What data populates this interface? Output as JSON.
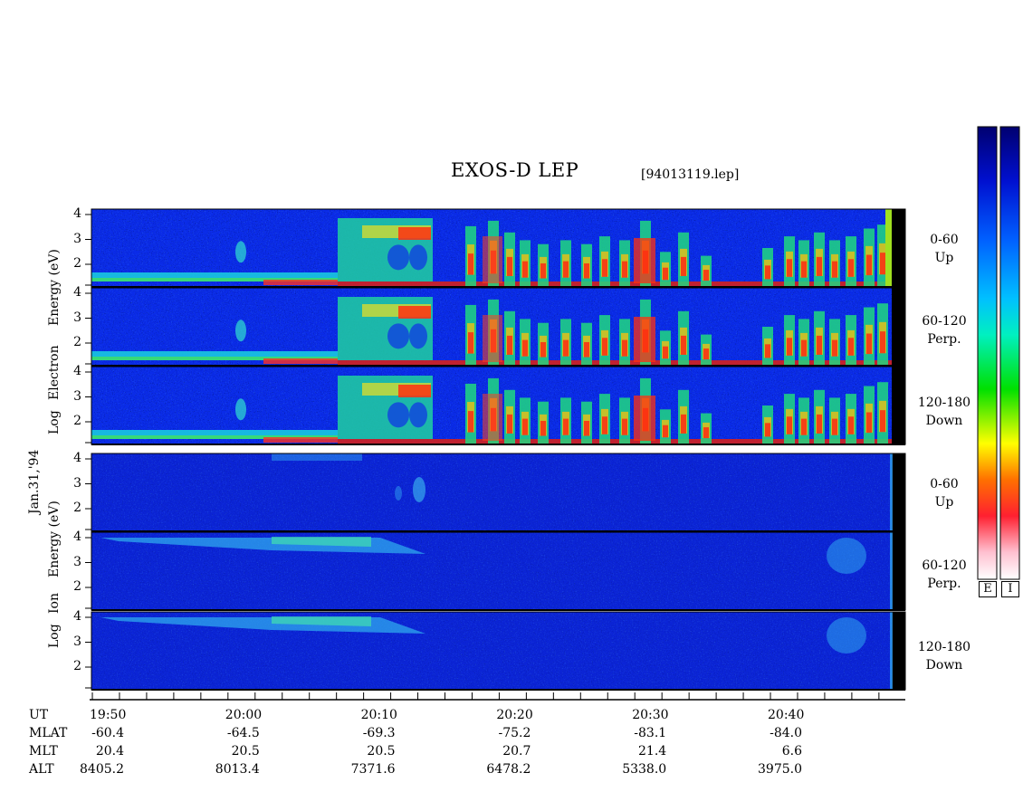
{
  "figure": {
    "title": "EXOS-D LEP",
    "filename": "[94013119.lep]",
    "date_label": "Jan.31,'94"
  },
  "electron_group": {
    "ylabel_lines": [
      "Log",
      "Electron",
      "Energy (eV)"
    ],
    "panels": [
      {
        "label1": "0-60",
        "label2": "Up"
      },
      {
        "label1": "60-120",
        "label2": "Perp."
      },
      {
        "label1": "120-180",
        "label2": "Down"
      }
    ]
  },
  "ion_group": {
    "ylabel_lines": [
      "Log",
      "Ion",
      "Energy (eV)"
    ],
    "panels": [
      {
        "label1": "0-60",
        "label2": "Up"
      },
      {
        "label1": "60-120",
        "label2": "Perp."
      },
      {
        "label1": "120-180",
        "label2": "Down"
      }
    ]
  },
  "y_ticks": [
    "4",
    "3",
    "2"
  ],
  "colorbar": {
    "labels": [
      "E",
      "I"
    ],
    "colors": [
      "#ffffff",
      "#ff9fb0",
      "#ff2a2a",
      "#ff8c00",
      "#ffff00",
      "#00ff00",
      "#00e0e0",
      "#0070ff",
      "#0000d0",
      "#000060"
    ]
  },
  "chart_data": {
    "type": "heatmap",
    "title": "EXOS-D LEP",
    "y_scale": "log",
    "y_ticks": [
      2,
      3,
      4
    ],
    "x_ticks": [
      "19:50",
      "20:00",
      "20:10",
      "20:20",
      "20:30",
      "20:40"
    ],
    "ephemeris": {
      "rows": [
        "UT",
        "MLAT",
        "MLT",
        "ALT"
      ],
      "UT": [
        "19:50",
        "20:00",
        "20:10",
        "20:20",
        "20:30",
        "20:40"
      ],
      "MLAT": [
        "-60.4",
        "-64.5",
        "-69.3",
        "-75.2",
        "-83.1",
        "-84.0"
      ],
      "MLT": [
        "20.4",
        "20.5",
        "20.5",
        "20.7",
        "21.4",
        "6.6"
      ],
      "ALT": [
        "8405.2",
        "8013.4",
        "7371.6",
        "6478.2",
        "5338.0",
        "3975.0"
      ]
    },
    "series": [
      {
        "name": "0-60 Up"
      },
      {
        "name": "60-120 Perp."
      },
      {
        "name": "120-180 Down"
      }
    ]
  }
}
